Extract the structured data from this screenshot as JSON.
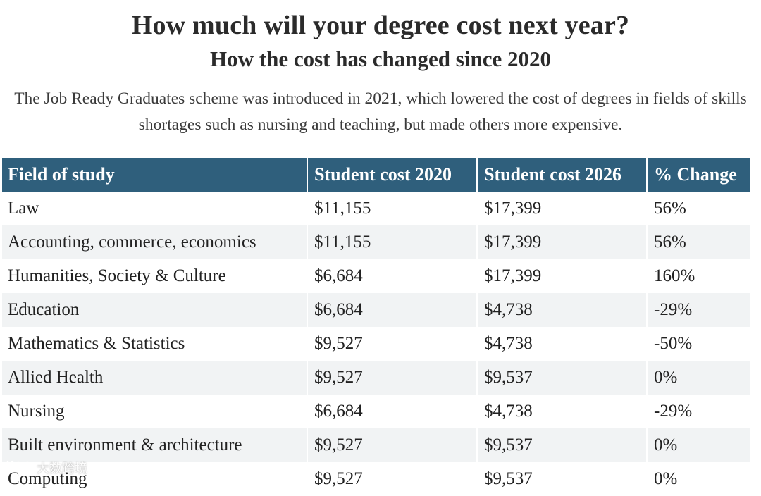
{
  "chart_data": {
    "type": "table",
    "title": "How much will your degree cost next year?",
    "subtitle": "How the cost has changed since 2020",
    "description": "The Job Ready Graduates scheme was introduced in 2021, which lowered the cost of degrees in fields of skills shortages such as nursing and teaching, but made others more expensive.",
    "columns": [
      "Field of study",
      "Student cost 2020",
      "Student cost 2026",
      "% Change"
    ],
    "rows": [
      [
        "Law",
        "$11,155",
        "$17,399",
        "56%"
      ],
      [
        "Accounting, commerce, economics",
        "$11,155",
        "$17,399",
        "56%"
      ],
      [
        "Humanities, Society & Culture",
        "$6,684",
        "$17,399",
        "160%"
      ],
      [
        "Education",
        "$6,684",
        "$4,738",
        "-29%"
      ],
      [
        "Mathematics & Statistics",
        "$9,527",
        "$4,738",
        "-50%"
      ],
      [
        "Allied Health",
        "$9,527",
        "$9,537",
        "0%"
      ],
      [
        "Nursing",
        "$6,684",
        "$4,738",
        "-29%"
      ],
      [
        "Built environment & architecture",
        "$9,527",
        "$9,537",
        "0%"
      ],
      [
        "Computing",
        "$9,527",
        "$9,537",
        "0%"
      ]
    ],
    "colors": {
      "header_bg": "#2f5f7c",
      "header_text": "#ffffff",
      "row_alt_bg": "#f1f3f4"
    }
  },
  "watermark": {
    "text": "大数跨境",
    "icon": "brand-logo-icon"
  }
}
